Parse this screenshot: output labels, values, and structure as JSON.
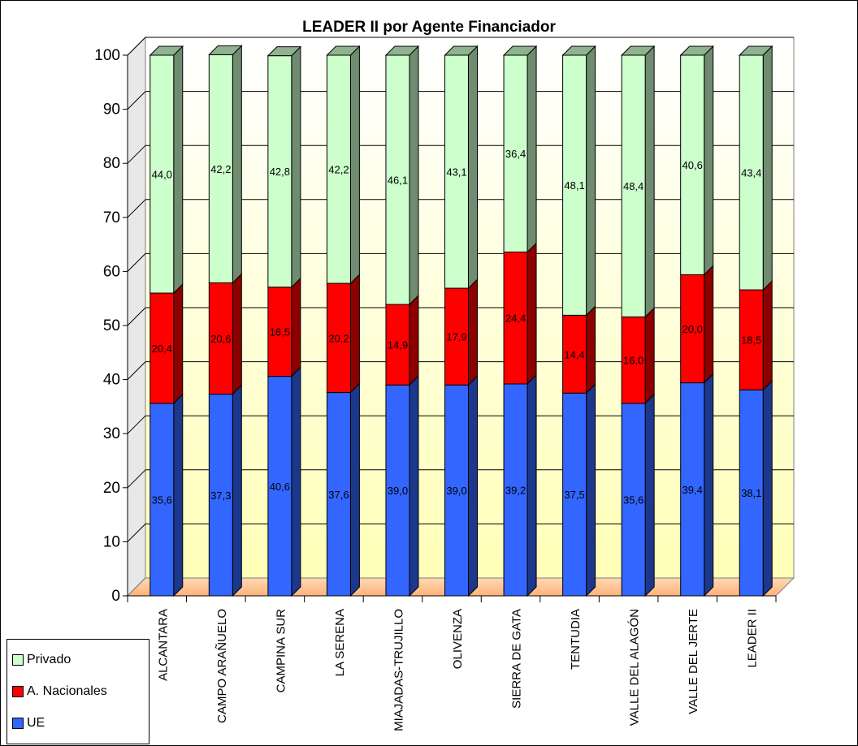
{
  "chart_data": {
    "type": "bar",
    "stacked": true,
    "title": "LEADER II por Agente Financiador",
    "categories": [
      "ALCANTARA",
      "CAMPO ARAÑUELO",
      "CAMPINA SUR",
      "LA SERENA",
      "MIAJADAS-TRUJILLO",
      "OLIVENZA",
      "SIERRA DE GATA",
      "TENTUDIA",
      "VALLE DEL ALAGÓN",
      "VALLE DEL JERTE",
      "LEADER II"
    ],
    "series": [
      {
        "name": "UE",
        "color": "#3366ff",
        "values": [
          35.6,
          37.3,
          40.6,
          37.6,
          39.0,
          39.0,
          39.2,
          37.5,
          35.6,
          39.4,
          38.1
        ],
        "labels": [
          "35,6",
          "37,3",
          "40,6",
          "37,6",
          "39,0",
          "39,0",
          "39,2",
          "37,5",
          "35,6",
          "39,4",
          "38,1"
        ]
      },
      {
        "name": "A. Nacionales",
        "color": "#ff0000",
        "values": [
          20.4,
          20.6,
          16.5,
          20.2,
          14.9,
          17.9,
          24.4,
          14.4,
          16.0,
          20.0,
          18.5
        ],
        "labels": [
          "20,4",
          "20,6",
          "16,5",
          "20,2",
          "14,9",
          "17,9",
          "24,4",
          "14,4",
          "16,0",
          "20,0",
          "18,5"
        ]
      },
      {
        "name": "Privado",
        "color": "#ccffcc",
        "values": [
          44.0,
          42.2,
          42.8,
          42.2,
          46.1,
          43.1,
          36.4,
          48.1,
          48.4,
          40.6,
          43.4
        ],
        "labels": [
          "44,0",
          "42,2",
          "42,8",
          "42,2",
          "46,1",
          "43,1",
          "36,4",
          "48,1",
          "48,4",
          "40,6",
          "43,4"
        ]
      }
    ],
    "ylim": [
      0,
      100
    ],
    "yticks": [
      0,
      10,
      20,
      30,
      40,
      50,
      60,
      70,
      80,
      90,
      100
    ],
    "grid": true,
    "legend_position": "bottom-left",
    "legend_order": [
      "Privado",
      "A. Nacionales",
      "UE"
    ]
  }
}
